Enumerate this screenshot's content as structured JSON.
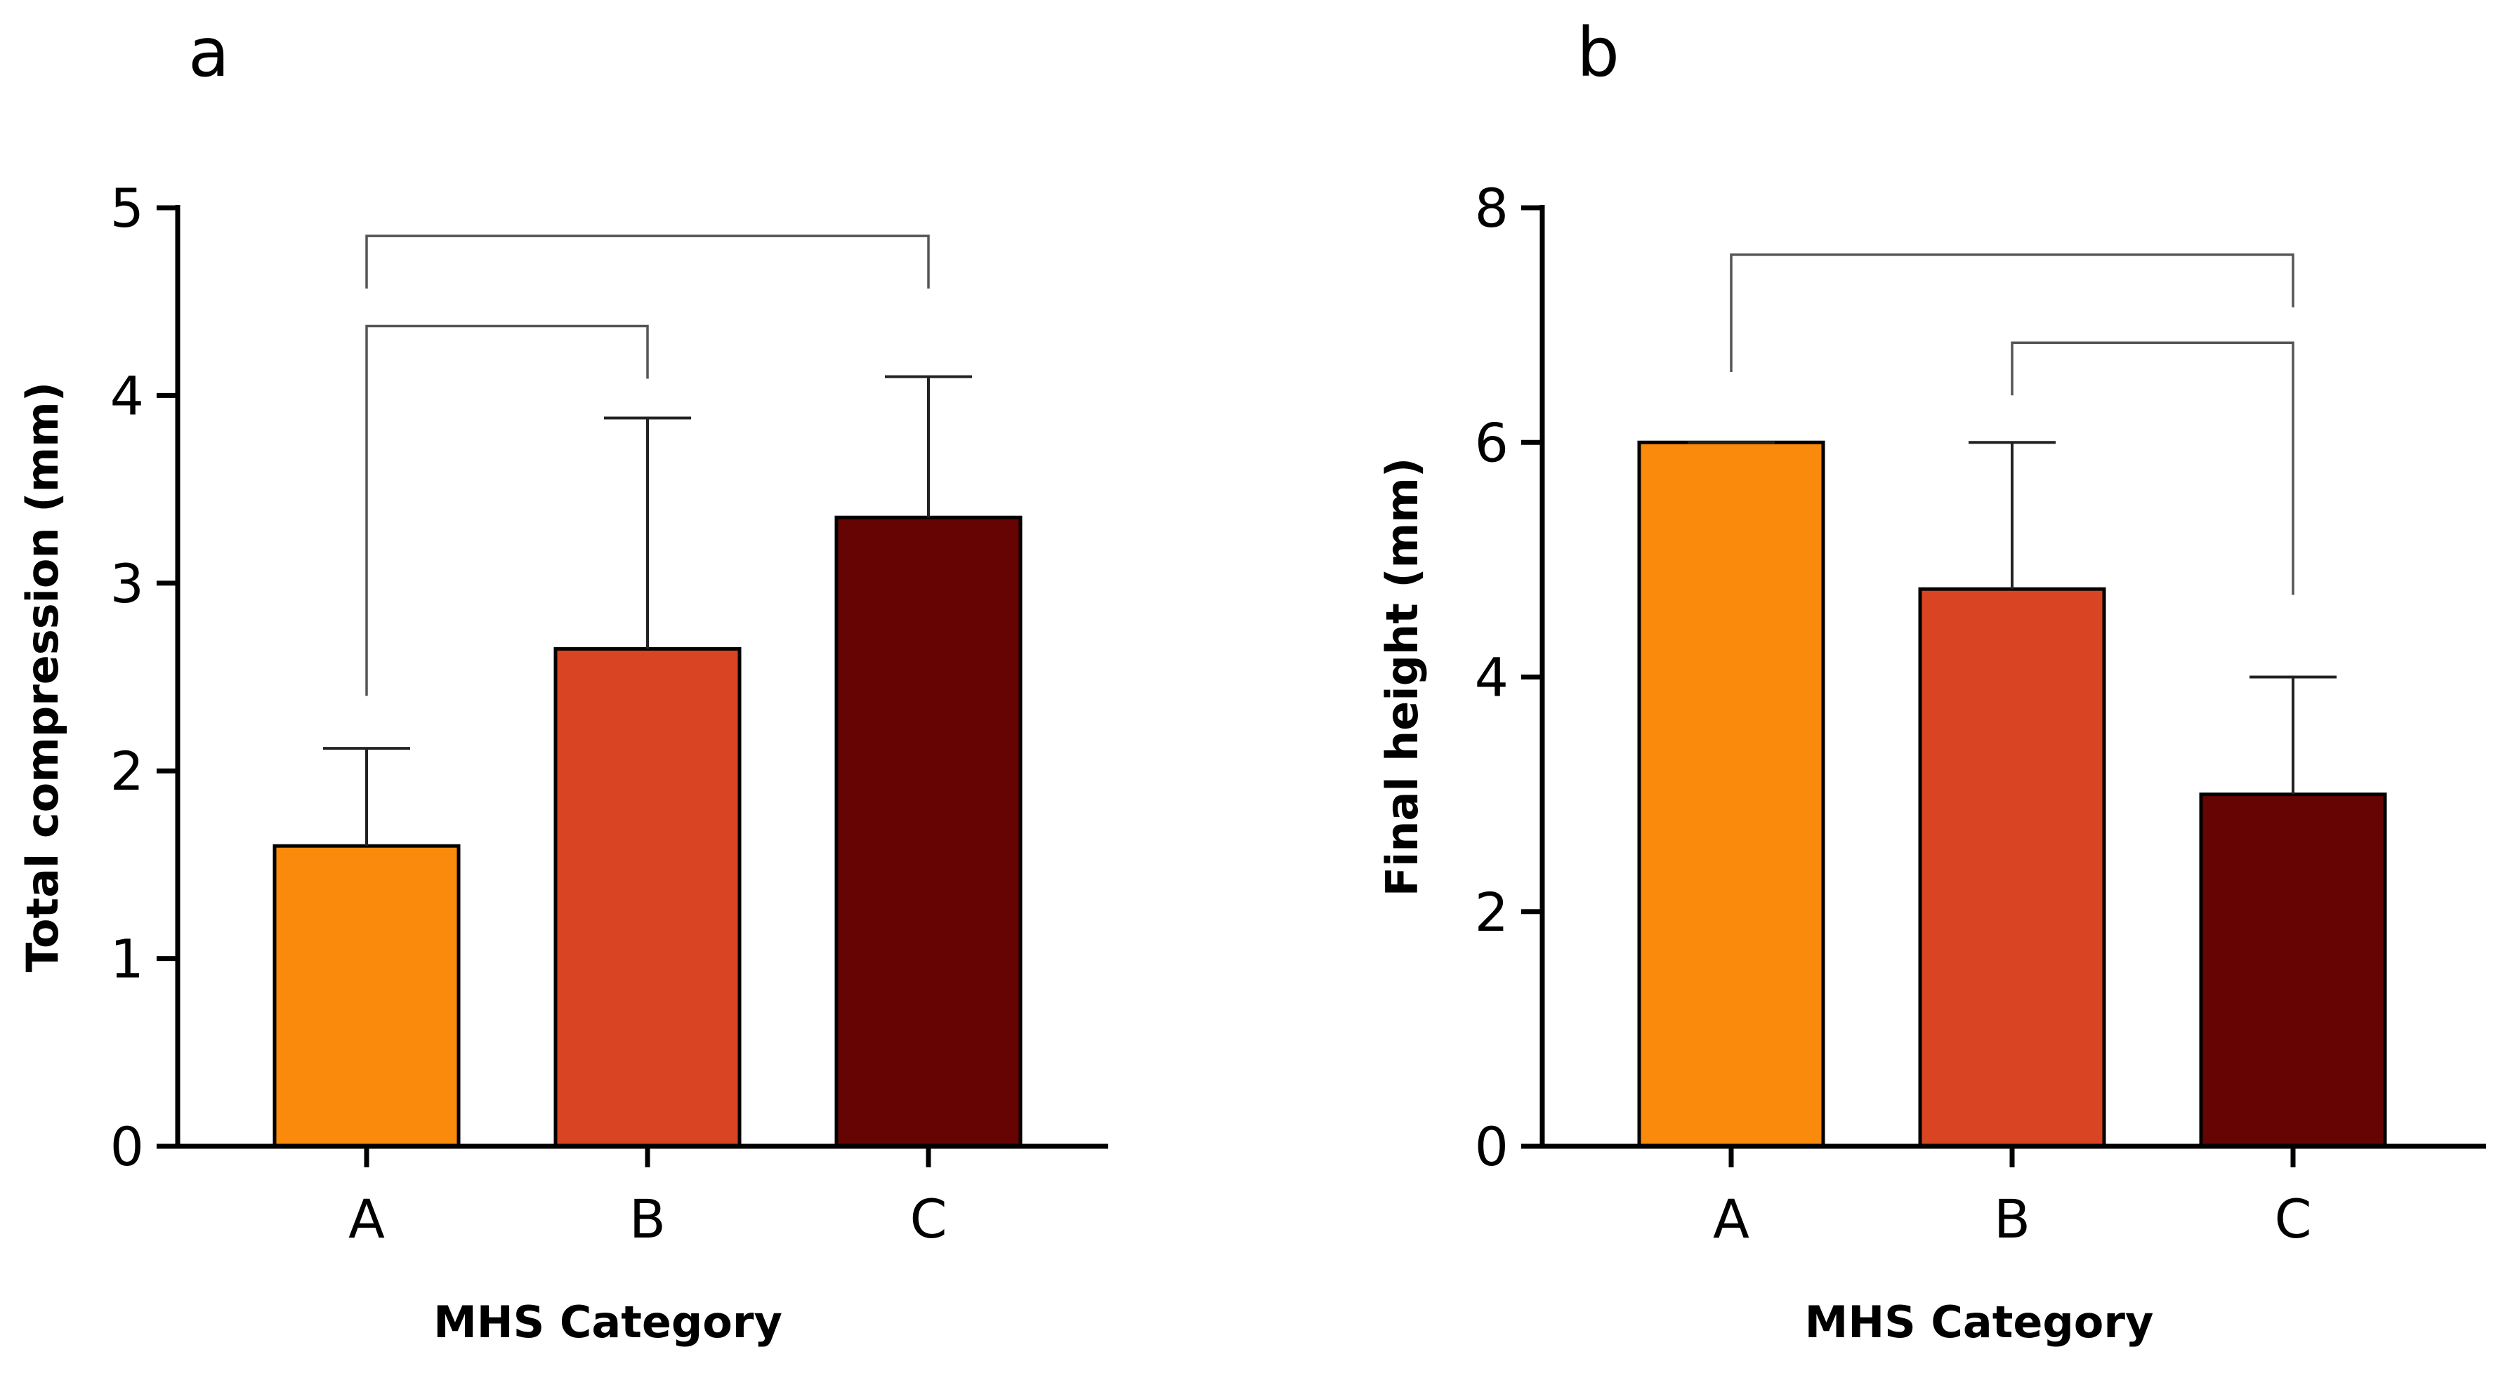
{
  "chart_data": [
    {
      "type": "bar",
      "panel_label": "a",
      "categories": [
        "A",
        "B",
        "C"
      ],
      "values": [
        1.6,
        2.65,
        3.35
      ],
      "errors": [
        0.52,
        1.23,
        0.75
      ],
      "colors": [
        "#F98A0C",
        "#D94422",
        "#660303"
      ],
      "xlabel": "MHS Category",
      "ylabel": "Total compression (mm)",
      "ylim": [
        0,
        5
      ],
      "yticks": [
        "0",
        "1",
        "2",
        "3",
        "4",
        "5"
      ],
      "significance_brackets": [
        {
          "from": "A",
          "to": "C",
          "level": 4.85
        },
        {
          "from": "A",
          "to": "B",
          "level": 4.37
        }
      ]
    },
    {
      "type": "bar",
      "panel_label": "b",
      "categories": [
        "A",
        "B",
        "C"
      ],
      "values": [
        6.0,
        4.75,
        3.0
      ],
      "errors": [
        0.0,
        1.25,
        1.0
      ],
      "colors": [
        "#F98A0C",
        "#D94422",
        "#660303"
      ],
      "xlabel": "MHS Category",
      "ylabel": "Final height (mm)",
      "ylim": [
        0,
        8
      ],
      "yticks": [
        "0",
        "2",
        "4",
        "6",
        "8"
      ],
      "significance_brackets": [
        {
          "from": "A",
          "to": "C",
          "level": 7.6
        },
        {
          "from": "B",
          "to": "C",
          "level": 6.85
        }
      ]
    }
  ]
}
